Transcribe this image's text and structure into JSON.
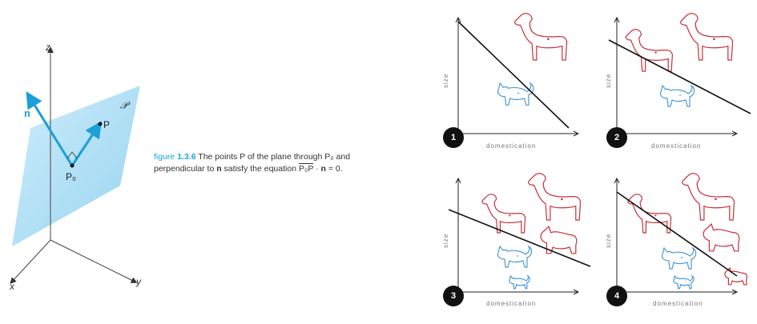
{
  "figure": {
    "axis_z": "z",
    "axis_x": "x",
    "axis_y": "y",
    "plane_label": "𝒫",
    "normal_label": "n",
    "point_p": "P",
    "point_p0": "P₀",
    "caption_prefix": "figure ",
    "caption_number": "1.3.6",
    "caption_line1_rest": " The points P of the plane through P₀ and",
    "caption_line2_a": "perpendicular to ",
    "caption_line2_n": "n",
    "caption_line2_b": " satisfy the equation ",
    "caption_vec": "P₀P",
    "caption_line2_c": " · ",
    "caption_line2_n2": "n",
    "caption_line2_d": " = 0."
  },
  "panels": [
    {
      "badge": "1",
      "xlabel": "domestication",
      "ylabel": "size"
    },
    {
      "badge": "2",
      "xlabel": "domestication",
      "ylabel": "size"
    },
    {
      "badge": "3",
      "xlabel": "domestication",
      "ylabel": "size"
    },
    {
      "badge": "4",
      "xlabel": "domestication",
      "ylabel": "size"
    }
  ],
  "colors": {
    "dog": "#c8303a",
    "cat": "#4a9ad8",
    "plane": "#9fd6f2",
    "normal": "#1aa0d6"
  }
}
